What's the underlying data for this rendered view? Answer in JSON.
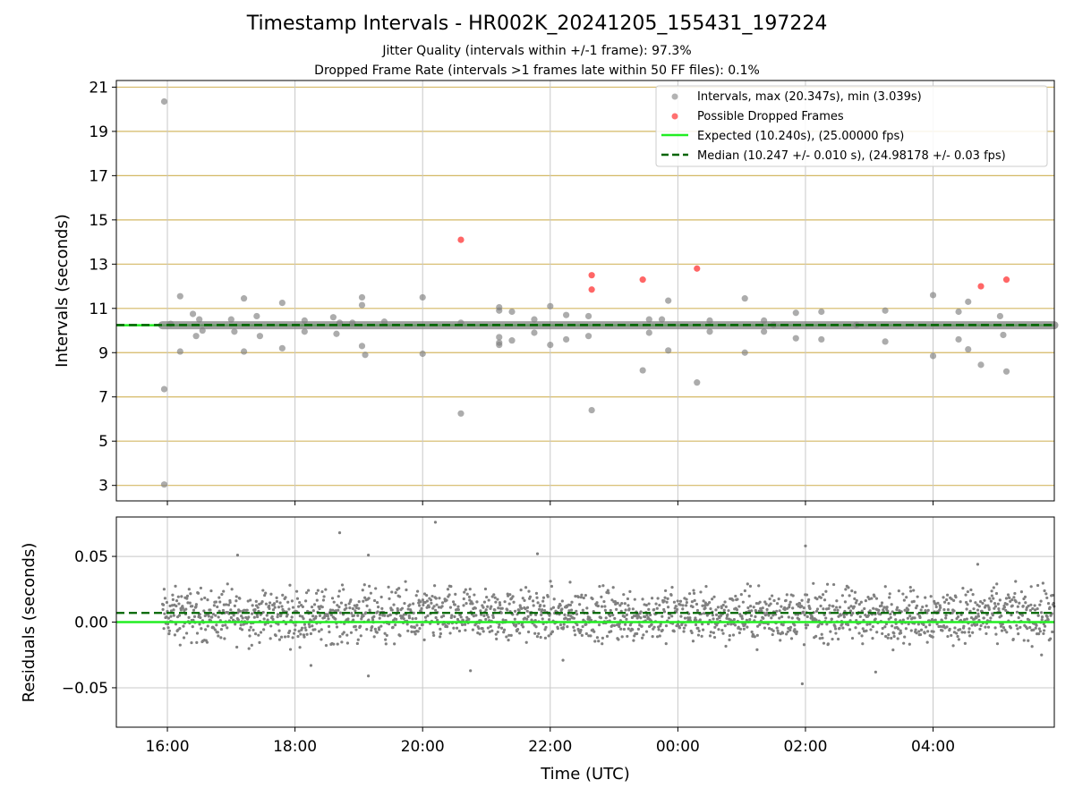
{
  "figure": {
    "title": "Timestamp Intervals - HR002K_20241205_155431_197224",
    "subtitle_1": "Jitter Quality (intervals within +/-1 frame): 97.3%",
    "subtitle_2": "Dropped Frame Rate (intervals >1 frames late within 50 FF files): 0.1%",
    "x_axis_label": "Time (UTC)",
    "x_tick_labels": [
      "16:00",
      "18:00",
      "20:00",
      "22:00",
      "00:00",
      "02:00",
      "04:00"
    ],
    "colors": {
      "intervals": "#808080",
      "dropped": "#ff3333",
      "expected": "#22ee22",
      "median": "#006400",
      "grid_gold": "#d4b865",
      "grid_gray": "#c8c8c8"
    }
  },
  "chart_data": [
    {
      "type": "scatter",
      "ylabel": "Intervals (seconds)",
      "ylim": [
        2.3,
        21.3
      ],
      "y_ticks": [
        3,
        5,
        7,
        9,
        11,
        13,
        15,
        17,
        19,
        21
      ],
      "x_range_hours": [
        15.2,
        29.9
      ],
      "legend_position": "top-right",
      "legend": [
        {
          "label": "Intervals, max (20.347s), min (3.039s)",
          "kind": "gray-dot"
        },
        {
          "label": "Possible Dropped Frames",
          "kind": "red-dot"
        },
        {
          "label": "Expected (10.240s), (25.00000 fps)",
          "kind": "green-line"
        },
        {
          "label": "Median (10.247 +/- 0.010 s), (24.98178 +/- 0.03 fps)",
          "kind": "dashed-line"
        }
      ],
      "expected_value": 10.24,
      "median_value": 10.247,
      "intervals": [
        [
          15.95,
          20.35
        ],
        [
          15.95,
          7.35
        ],
        [
          15.95,
          3.04
        ],
        [
          16.05,
          10.3
        ],
        [
          16.2,
          11.55
        ],
        [
          16.2,
          9.05
        ],
        [
          16.4,
          10.75
        ],
        [
          16.45,
          9.75
        ],
        [
          16.5,
          10.5
        ],
        [
          16.55,
          10.0
        ],
        [
          17.0,
          10.5
        ],
        [
          17.05,
          9.95
        ],
        [
          17.2,
          11.45
        ],
        [
          17.2,
          9.05
        ],
        [
          17.4,
          10.65
        ],
        [
          17.45,
          9.75
        ],
        [
          17.8,
          11.25
        ],
        [
          17.8,
          9.2
        ],
        [
          18.15,
          10.45
        ],
        [
          18.15,
          9.95
        ],
        [
          18.6,
          10.6
        ],
        [
          18.65,
          9.85
        ],
        [
          18.7,
          10.35
        ],
        [
          18.9,
          10.35
        ],
        [
          19.05,
          11.5
        ],
        [
          19.05,
          11.15
        ],
        [
          19.05,
          9.3
        ],
        [
          19.1,
          8.9
        ],
        [
          19.4,
          10.4
        ],
        [
          20.0,
          11.5
        ],
        [
          20.0,
          8.95
        ],
        [
          20.6,
          6.25
        ],
        [
          20.6,
          10.35
        ],
        [
          21.2,
          11.05
        ],
        [
          21.2,
          10.9
        ],
        [
          21.2,
          9.7
        ],
        [
          21.2,
          9.45
        ],
        [
          21.2,
          9.35
        ],
        [
          21.4,
          10.85
        ],
        [
          21.4,
          9.55
        ],
        [
          21.75,
          10.5
        ],
        [
          21.75,
          9.9
        ],
        [
          22.0,
          11.1
        ],
        [
          22.0,
          9.35
        ],
        [
          22.25,
          10.7
        ],
        [
          22.25,
          9.6
        ],
        [
          22.6,
          10.65
        ],
        [
          22.6,
          9.75
        ],
        [
          22.65,
          6.4
        ],
        [
          23.45,
          8.2
        ],
        [
          23.55,
          10.5
        ],
        [
          23.55,
          9.9
        ],
        [
          23.75,
          10.5
        ],
        [
          23.85,
          11.35
        ],
        [
          23.85,
          9.1
        ],
        [
          24.3,
          7.65
        ],
        [
          24.5,
          10.45
        ],
        [
          24.5,
          9.95
        ],
        [
          25.05,
          11.45
        ],
        [
          25.05,
          9.0
        ],
        [
          25.35,
          10.45
        ],
        [
          25.35,
          9.95
        ],
        [
          25.5,
          10.25
        ],
        [
          25.85,
          10.8
        ],
        [
          25.85,
          9.65
        ],
        [
          26.25,
          10.85
        ],
        [
          26.25,
          9.6
        ],
        [
          26.8,
          10.25
        ],
        [
          27.25,
          10.9
        ],
        [
          27.25,
          9.5
        ],
        [
          28.0,
          11.6
        ],
        [
          28.0,
          8.85
        ],
        [
          28.4,
          10.85
        ],
        [
          28.4,
          9.6
        ],
        [
          28.55,
          11.3
        ],
        [
          28.55,
          9.15
        ],
        [
          28.75,
          8.45
        ],
        [
          29.05,
          10.65
        ],
        [
          29.1,
          9.8
        ],
        [
          29.15,
          8.15
        ]
      ],
      "dropped_frames": [
        [
          20.6,
          14.1
        ],
        [
          22.65,
          12.5
        ],
        [
          22.65,
          11.85
        ],
        [
          23.45,
          12.3
        ],
        [
          24.3,
          12.8
        ],
        [
          28.75,
          12.0
        ],
        [
          29.15,
          12.3
        ]
      ]
    },
    {
      "type": "scatter",
      "ylabel": "Residuals (seconds)",
      "ylim": [
        -0.08,
        0.08
      ],
      "y_ticks": [
        -0.05,
        0.0,
        0.05
      ],
      "y_tick_labels": [
        "−0.05",
        "0.00",
        "0.05"
      ],
      "x_range_hours": [
        15.2,
        29.9
      ],
      "point_count": 2000,
      "time_span_hours": [
        15.92,
        29.9
      ],
      "residual_band": [
        -0.025,
        0.035
      ],
      "expected_value": 0.0,
      "median_value": 0.007,
      "outliers": [
        [
          17.1,
          0.051
        ],
        [
          18.7,
          0.068
        ],
        [
          19.15,
          0.051
        ],
        [
          20.2,
          0.076
        ],
        [
          21.8,
          0.052
        ],
        [
          26.0,
          0.058
        ],
        [
          28.7,
          0.044
        ],
        [
          18.25,
          -0.033
        ],
        [
          19.15,
          -0.041
        ],
        [
          20.75,
          -0.037
        ],
        [
          22.2,
          -0.029
        ],
        [
          25.95,
          -0.047
        ],
        [
          27.1,
          -0.038
        ],
        [
          29.7,
          -0.025
        ]
      ]
    }
  ]
}
